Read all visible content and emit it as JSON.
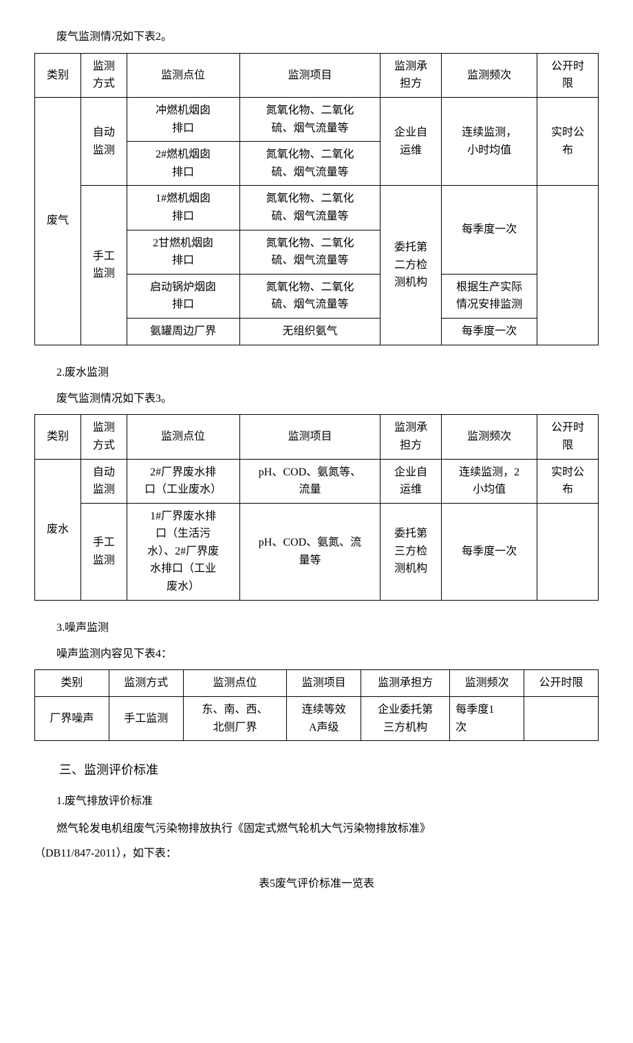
{
  "intro1": "废气监测情况如下表2。",
  "table1": {
    "headers": [
      "类别",
      "监测\n方式",
      "监测点位",
      "监测项目",
      "监测承\n担方",
      "监测频次",
      "公开时\n限"
    ],
    "category": "废气",
    "auto_method": "自动\n监测",
    "manual_method": "手工\n监测",
    "r1_point": "冲燃机烟囱\n排口",
    "r1_item": "氮氧化物、二氧化\n硫、烟气流量等",
    "r12_owner": "企业自\n运维",
    "r12_freq": "连续监测，\n小时均值",
    "r12_pub": "实时公\n布",
    "r2_point": "2#燃机烟囱\n排口",
    "r2_item": "氮氧化物、二氧化\n硫、烟气流量等",
    "r3_point": "1#燃机烟囱\n排口",
    "r3_item": "氮氧化物、二氧化\n硫、烟气流量等",
    "r34_freq": "每季度一次",
    "r4_point": "2甘燃机烟囱\n排口",
    "r4_item": "氮氧化物、二氧化\n硫、烟气流量等",
    "r3456_owner": "委托第\n二方检\n测机构",
    "r5_point": "启动锅炉烟囱\n排口",
    "r5_item": "氮氧化物、二氧化\n硫、烟气流量等",
    "r5_freq": "根据生产实际\n情况安排监测",
    "r6_point": "氨罐周边厂界",
    "r6_item": "无组织氨气",
    "r6_freq": "每季度一次"
  },
  "sec2_num": "2.废水监测",
  "intro2": "废气监测情况如下表3。",
  "table2": {
    "headers": [
      "类别",
      "监测\n方式",
      "监测点位",
      "监测项目",
      "监测承\n担方",
      "监测频次",
      "公开时\n限"
    ],
    "category": "废水",
    "auto_method": "自动\n监测",
    "manual_method": "手工\n监测",
    "r1_point": "2#厂界废水排\n口（工业废水）",
    "r1_item": "pH、COD、氨氮等、\n流量",
    "r1_owner": "企业自\n运维",
    "r1_freq": "连续监测，2\n小均值",
    "r1_pub": "实时公\n布",
    "r2_point": "1#厂界废水排\n口（生活污\n水）、2#厂界废\n水排口（工业\n废水）",
    "r2_item": "pH、COD、氨氮、流\n量等",
    "r2_owner": "委托第\n三方检\n测机构",
    "r2_freq": "每季度一次"
  },
  "sec3_num": "3.噪声监测",
  "intro3": "噪声监测内容见下表4：",
  "table3": {
    "headers": [
      "类别",
      "监测方式",
      "监测点位",
      "监测项目",
      "监测承担方",
      "监测频次",
      "公开时限"
    ],
    "r1": [
      "厂界噪声",
      "手工监测",
      "东、南、西、\n北侧厂界",
      "连续等效\nA声级",
      "企业委托第\n三方机构",
      "每季度1\n次",
      ""
    ]
  },
  "sec_major": "三、监测评价标准",
  "sec4_num": "1.废气排放评价标准",
  "para4a": "燃气轮发电机组废气污染物排放执行《固定式燃气轮机大气污染物排放标准》",
  "para4b": "（DB11/847-2011），如下表：",
  "caption5": "表5废气评价标准一览表"
}
